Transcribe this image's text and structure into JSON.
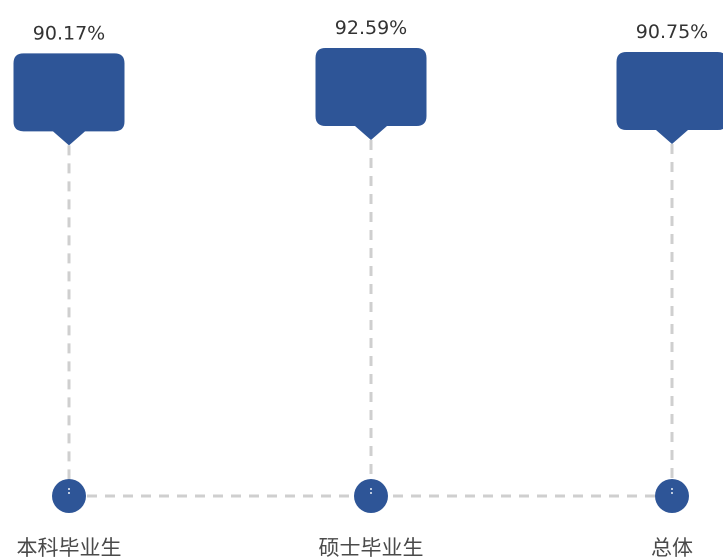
{
  "chart_data": {
    "type": "scatter",
    "title": "",
    "xlabel": "",
    "ylabel": "",
    "categories": [
      "本科毕业生",
      "硕士毕业生",
      "总体"
    ],
    "values": [
      90.17,
      92.59,
      90.75
    ],
    "value_labels": [
      "90.17%",
      "92.59%",
      "90.75%"
    ],
    "unit": "%",
    "legend": "none",
    "grid": false,
    "colors": {
      "marker": "#2e5597",
      "connector": "#cfcfcf",
      "text": "#333333"
    }
  }
}
